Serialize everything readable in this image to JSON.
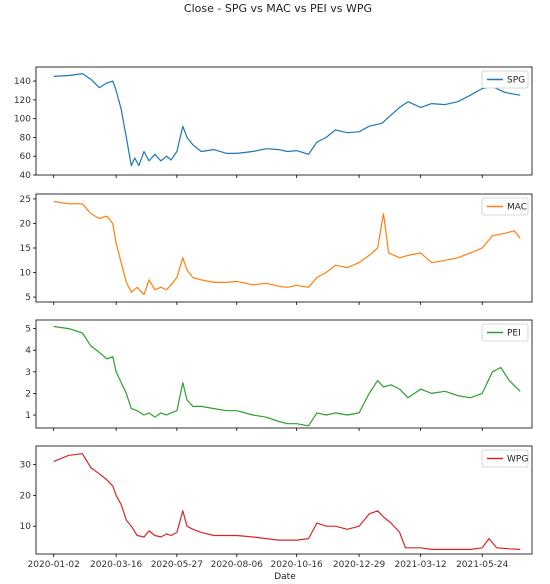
{
  "chart_data": {
    "type": "line",
    "title": "Close - SPG vs MAC vs PEI vs WPG",
    "xlabel": "Date",
    "x_ticks": [
      "2020-01-02",
      "2020-03-16",
      "2020-05-27",
      "2020-08-06",
      "2020-10-16",
      "2020-12-29",
      "2021-03-12",
      "2021-05-24"
    ],
    "x_range": [
      "2019-12-12",
      "2021-07-22"
    ],
    "grid": false,
    "legend_position": "upper right",
    "series": [
      {
        "name": "SPG",
        "color": "#1f77b4",
        "ylim": [
          40,
          155
        ],
        "yticks": [
          40,
          60,
          80,
          100,
          120,
          140
        ],
        "points": [
          [
            "2020-01-02",
            145
          ],
          [
            "2020-01-20",
            146
          ],
          [
            "2020-02-05",
            148
          ],
          [
            "2020-02-15",
            142
          ],
          [
            "2020-02-25",
            133
          ],
          [
            "2020-03-05",
            138
          ],
          [
            "2020-03-12",
            140
          ],
          [
            "2020-03-16",
            130
          ],
          [
            "2020-03-22",
            110
          ],
          [
            "2020-03-28",
            80
          ],
          [
            "2020-04-03",
            50
          ],
          [
            "2020-04-07",
            58
          ],
          [
            "2020-04-12",
            50
          ],
          [
            "2020-04-18",
            65
          ],
          [
            "2020-04-24",
            55
          ],
          [
            "2020-05-01",
            62
          ],
          [
            "2020-05-08",
            55
          ],
          [
            "2020-05-15",
            60
          ],
          [
            "2020-05-20",
            56
          ],
          [
            "2020-05-27",
            65
          ],
          [
            "2020-06-03",
            92
          ],
          [
            "2020-06-08",
            80
          ],
          [
            "2020-06-15",
            72
          ],
          [
            "2020-06-25",
            65
          ],
          [
            "2020-07-10",
            67
          ],
          [
            "2020-07-25",
            63
          ],
          [
            "2020-08-06",
            63
          ],
          [
            "2020-08-25",
            65
          ],
          [
            "2020-09-10",
            68
          ],
          [
            "2020-09-25",
            67
          ],
          [
            "2020-10-05",
            65
          ],
          [
            "2020-10-16",
            66
          ],
          [
            "2020-10-30",
            62
          ],
          [
            "2020-11-09",
            75
          ],
          [
            "2020-11-20",
            80
          ],
          [
            "2020-12-01",
            88
          ],
          [
            "2020-12-15",
            85
          ],
          [
            "2020-12-29",
            86
          ],
          [
            "2021-01-10",
            92
          ],
          [
            "2021-01-25",
            95
          ],
          [
            "2021-02-05",
            104
          ],
          [
            "2021-02-15",
            112
          ],
          [
            "2021-02-25",
            118
          ],
          [
            "2021-03-12",
            112
          ],
          [
            "2021-03-25",
            116
          ],
          [
            "2021-04-10",
            115
          ],
          [
            "2021-04-25",
            118
          ],
          [
            "2021-05-10",
            125
          ],
          [
            "2021-05-24",
            132
          ],
          [
            "2021-06-05",
            134
          ],
          [
            "2021-06-20",
            128
          ],
          [
            "2021-07-01",
            126
          ],
          [
            "2021-07-08",
            125
          ]
        ]
      },
      {
        "name": "MAC",
        "color": "#ff7f0e",
        "ylim": [
          4,
          26
        ],
        "yticks": [
          5,
          10,
          15,
          20,
          25
        ],
        "points": [
          [
            "2020-01-02",
            24.5
          ],
          [
            "2020-01-20",
            24
          ],
          [
            "2020-02-05",
            24
          ],
          [
            "2020-02-15",
            22
          ],
          [
            "2020-02-25",
            21
          ],
          [
            "2020-03-05",
            21.5
          ],
          [
            "2020-03-12",
            20
          ],
          [
            "2020-03-16",
            16
          ],
          [
            "2020-03-22",
            12
          ],
          [
            "2020-03-28",
            8
          ],
          [
            "2020-04-03",
            6
          ],
          [
            "2020-04-10",
            7
          ],
          [
            "2020-04-18",
            5.5
          ],
          [
            "2020-04-24",
            8.5
          ],
          [
            "2020-05-01",
            6.5
          ],
          [
            "2020-05-08",
            7
          ],
          [
            "2020-05-15",
            6.5
          ],
          [
            "2020-05-20",
            7.5
          ],
          [
            "2020-05-27",
            9
          ],
          [
            "2020-06-03",
            13
          ],
          [
            "2020-06-08",
            10.5
          ],
          [
            "2020-06-15",
            9
          ],
          [
            "2020-06-25",
            8.5
          ],
          [
            "2020-07-10",
            8
          ],
          [
            "2020-07-25",
            8
          ],
          [
            "2020-08-06",
            8.2
          ],
          [
            "2020-08-25",
            7.5
          ],
          [
            "2020-09-10",
            7.8
          ],
          [
            "2020-09-25",
            7.2
          ],
          [
            "2020-10-05",
            7
          ],
          [
            "2020-10-16",
            7.4
          ],
          [
            "2020-10-30",
            7
          ],
          [
            "2020-11-09",
            9
          ],
          [
            "2020-11-20",
            10
          ],
          [
            "2020-12-01",
            11.5
          ],
          [
            "2020-12-15",
            11
          ],
          [
            "2020-12-29",
            12
          ],
          [
            "2021-01-10",
            13.5
          ],
          [
            "2021-01-20",
            15
          ],
          [
            "2021-01-27",
            22
          ],
          [
            "2021-02-02",
            14
          ],
          [
            "2021-02-15",
            13
          ],
          [
            "2021-02-25",
            13.5
          ],
          [
            "2021-03-12",
            14
          ],
          [
            "2021-03-25",
            12
          ],
          [
            "2021-04-10",
            12.5
          ],
          [
            "2021-04-25",
            13
          ],
          [
            "2021-05-10",
            14
          ],
          [
            "2021-05-24",
            15
          ],
          [
            "2021-06-05",
            17.5
          ],
          [
            "2021-06-20",
            18
          ],
          [
            "2021-07-01",
            18.5
          ],
          [
            "2021-07-08",
            17
          ]
        ]
      },
      {
        "name": "PEI",
        "color": "#2ca02c",
        "ylim": [
          0.4,
          5.4
        ],
        "yticks": [
          1,
          2,
          3,
          4,
          5
        ],
        "points": [
          [
            "2020-01-02",
            5.1
          ],
          [
            "2020-01-20",
            5.0
          ],
          [
            "2020-02-05",
            4.8
          ],
          [
            "2020-02-15",
            4.2
          ],
          [
            "2020-02-25",
            3.9
          ],
          [
            "2020-03-05",
            3.6
          ],
          [
            "2020-03-12",
            3.7
          ],
          [
            "2020-03-16",
            3.0
          ],
          [
            "2020-03-22",
            2.5
          ],
          [
            "2020-03-28",
            2.0
          ],
          [
            "2020-04-03",
            1.3
          ],
          [
            "2020-04-10",
            1.2
          ],
          [
            "2020-04-18",
            1.0
          ],
          [
            "2020-04-24",
            1.1
          ],
          [
            "2020-05-01",
            0.9
          ],
          [
            "2020-05-08",
            1.1
          ],
          [
            "2020-05-15",
            1.0
          ],
          [
            "2020-05-20",
            1.1
          ],
          [
            "2020-05-27",
            1.2
          ],
          [
            "2020-06-03",
            2.5
          ],
          [
            "2020-06-08",
            1.7
          ],
          [
            "2020-06-15",
            1.4
          ],
          [
            "2020-06-25",
            1.4
          ],
          [
            "2020-07-10",
            1.3
          ],
          [
            "2020-07-25",
            1.2
          ],
          [
            "2020-08-06",
            1.2
          ],
          [
            "2020-08-25",
            1.0
          ],
          [
            "2020-09-10",
            0.9
          ],
          [
            "2020-09-25",
            0.7
          ],
          [
            "2020-10-05",
            0.6
          ],
          [
            "2020-10-16",
            0.6
          ],
          [
            "2020-10-30",
            0.5
          ],
          [
            "2020-11-09",
            1.1
          ],
          [
            "2020-11-20",
            1.0
          ],
          [
            "2020-12-01",
            1.1
          ],
          [
            "2020-12-15",
            1.0
          ],
          [
            "2020-12-29",
            1.1
          ],
          [
            "2021-01-10",
            2.0
          ],
          [
            "2021-01-20",
            2.6
          ],
          [
            "2021-01-27",
            2.3
          ],
          [
            "2021-02-05",
            2.4
          ],
          [
            "2021-02-15",
            2.2
          ],
          [
            "2021-02-25",
            1.8
          ],
          [
            "2021-03-12",
            2.2
          ],
          [
            "2021-03-25",
            2.0
          ],
          [
            "2021-04-10",
            2.1
          ],
          [
            "2021-04-25",
            1.9
          ],
          [
            "2021-05-10",
            1.8
          ],
          [
            "2021-05-24",
            2.0
          ],
          [
            "2021-06-05",
            3.0
          ],
          [
            "2021-06-15",
            3.2
          ],
          [
            "2021-06-25",
            2.6
          ],
          [
            "2021-07-08",
            2.1
          ]
        ]
      },
      {
        "name": "WPG",
        "color": "#d62728",
        "ylim": [
          1,
          36
        ],
        "yticks": [
          10,
          20,
          30
        ],
        "points": [
          [
            "2020-01-02",
            31
          ],
          [
            "2020-01-20",
            33
          ],
          [
            "2020-02-05",
            33.5
          ],
          [
            "2020-02-15",
            29
          ],
          [
            "2020-02-25",
            27
          ],
          [
            "2020-03-05",
            25
          ],
          [
            "2020-03-12",
            23
          ],
          [
            "2020-03-16",
            20
          ],
          [
            "2020-03-22",
            17
          ],
          [
            "2020-03-28",
            12
          ],
          [
            "2020-04-03",
            10
          ],
          [
            "2020-04-10",
            7
          ],
          [
            "2020-04-18",
            6.5
          ],
          [
            "2020-04-24",
            8.5
          ],
          [
            "2020-05-01",
            7
          ],
          [
            "2020-05-08",
            6.5
          ],
          [
            "2020-05-15",
            7.5
          ],
          [
            "2020-05-20",
            7
          ],
          [
            "2020-05-27",
            8
          ],
          [
            "2020-06-03",
            15
          ],
          [
            "2020-06-08",
            10
          ],
          [
            "2020-06-15",
            9
          ],
          [
            "2020-06-25",
            8
          ],
          [
            "2020-07-10",
            7
          ],
          [
            "2020-07-25",
            7
          ],
          [
            "2020-08-06",
            7
          ],
          [
            "2020-08-25",
            6.5
          ],
          [
            "2020-09-10",
            6
          ],
          [
            "2020-09-25",
            5.5
          ],
          [
            "2020-10-05",
            5.5
          ],
          [
            "2020-10-16",
            5.5
          ],
          [
            "2020-10-30",
            6
          ],
          [
            "2020-11-09",
            11
          ],
          [
            "2020-11-20",
            10
          ],
          [
            "2020-12-01",
            10
          ],
          [
            "2020-12-15",
            9
          ],
          [
            "2020-12-29",
            10
          ],
          [
            "2021-01-10",
            14
          ],
          [
            "2021-01-20",
            15
          ],
          [
            "2021-01-27",
            13
          ],
          [
            "2021-02-05",
            11
          ],
          [
            "2021-02-15",
            8
          ],
          [
            "2021-02-22",
            3
          ],
          [
            "2021-03-12",
            3
          ],
          [
            "2021-03-25",
            2.5
          ],
          [
            "2021-04-10",
            2.5
          ],
          [
            "2021-04-25",
            2.5
          ],
          [
            "2021-05-10",
            2.5
          ],
          [
            "2021-05-24",
            3
          ],
          [
            "2021-06-01",
            6
          ],
          [
            "2021-06-10",
            3
          ],
          [
            "2021-06-25",
            2.7
          ],
          [
            "2021-07-08",
            2.5
          ]
        ]
      }
    ]
  }
}
